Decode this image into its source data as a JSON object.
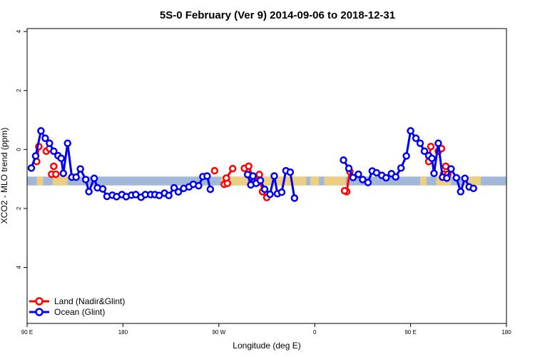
{
  "chart_data": {
    "type": "line",
    "title": "5S-0 February (Ver 9)   2014-09-06 to 2018-12-31",
    "xlabel": "Longitude (deg E)",
    "ylabel": "XCO2 - MLO trend (ppm)",
    "xlim": [
      90,
      540
    ],
    "ylim": [
      -5.9,
      4.1
    ],
    "x_ticks": [
      {
        "value": 90,
        "label": "90 E"
      },
      {
        "value": 180,
        "label": "180"
      },
      {
        "value": 270,
        "label": "90 W"
      },
      {
        "value": 360,
        "label": "0"
      },
      {
        "value": 450,
        "label": "90 E"
      },
      {
        "value": 540,
        "label": "180"
      }
    ],
    "y_ticks": [
      {
        "value": 4,
        "label": "4"
      },
      {
        "value": 2,
        "label": "2"
      },
      {
        "value": 0,
        "label": "0"
      },
      {
        "value": -2,
        "label": "2"
      },
      {
        "value": -4,
        "label": "4"
      }
    ],
    "band": {
      "y_center": -1.07,
      "height": 0.3,
      "color": "#a3b8d8",
      "land_color": "#f5d27a"
    },
    "land_segments": [
      [
        99,
        105
      ],
      [
        114,
        128
      ],
      [
        272,
        297
      ],
      [
        300,
        352
      ],
      [
        356,
        364
      ],
      [
        369,
        389
      ],
      [
        459,
        465
      ],
      [
        474,
        488
      ],
      [
        500,
        516
      ]
    ],
    "series": [
      {
        "name": "Land (Nadir&Glint)",
        "color": "#ff0000",
        "segments": [
          [
            [
              99,
              -0.41
            ],
            [
              101,
              0.1
            ]
          ],
          [
            [
              113,
              -0.84
            ],
            [
              117,
              -0.84
            ]
          ],
          [
            [
              266,
              -0.72
            ]
          ],
          [
            [
              275,
              -1.18
            ],
            [
              277,
              -0.97
            ],
            [
              283,
              -0.65
            ]
          ],
          [
            [
              294,
              -0.64
            ],
            [
              298,
              -0.57
            ],
            [
              303,
              -1.05
            ],
            [
              308,
              -0.85
            ],
            [
              311,
              -1.43
            ],
            [
              315,
              -1.63
            ]
          ],
          [
            [
              390,
              -1.43
            ],
            [
              393,
              -0.75
            ]
          ],
          [
            [
              467,
              -0.41
            ],
            [
              469,
              0.1
            ]
          ],
          [
            [
              481,
              -0.84
            ],
            [
              485,
              -0.84
            ]
          ]
        ],
        "points": [
          [
            108,
            -0.06
          ],
          [
            111,
            0.03
          ],
          [
            115,
            -0.57
          ],
          [
            476,
            -0.06
          ],
          [
            479,
            0.03
          ],
          [
            483,
            -0.57
          ],
          [
            278,
            -1.15
          ],
          [
            307,
            -1.11
          ],
          [
            388,
            -1.4
          ]
        ]
      },
      {
        "name": "Ocean (Glint)",
        "color": "#0000ee",
        "segments": [
          [
            [
              94,
              -0.63
            ],
            [
              98,
              -0.22
            ],
            [
              103,
              0.63
            ],
            [
              107,
              0.38
            ],
            [
              111,
              0.21
            ],
            [
              115,
              -0.06
            ],
            [
              119,
              -0.21
            ],
            [
              122,
              -0.3
            ],
            [
              124,
              -0.81
            ],
            [
              128,
              0.21
            ],
            [
              132,
              -0.94
            ],
            [
              136,
              -0.94
            ],
            [
              140,
              -0.66
            ],
            [
              145,
              -1.02
            ],
            [
              148,
              -1.43
            ],
            [
              153,
              -0.98
            ],
            [
              156,
              -1.3
            ],
            [
              161,
              -1.34
            ],
            [
              165,
              -1.59
            ],
            [
              170,
              -1.55
            ],
            [
              174,
              -1.6
            ],
            [
              179,
              -1.53
            ],
            [
              183,
              -1.6
            ],
            [
              188,
              -1.55
            ],
            [
              192,
              -1.53
            ],
            [
              197,
              -1.62
            ],
            [
              201,
              -1.53
            ],
            [
              206,
              -1.53
            ],
            [
              210,
              -1.53
            ],
            [
              214,
              -1.56
            ],
            [
              219,
              -1.48
            ],
            [
              223,
              -1.56
            ],
            [
              228,
              -1.3
            ],
            [
              232,
              -1.44
            ],
            [
              237,
              -1.32
            ],
            [
              242,
              -1.27
            ],
            [
              246,
              -1.18
            ],
            [
              251,
              -1.23
            ],
            [
              255,
              -0.92
            ],
            [
              259,
              -0.9
            ],
            [
              262,
              -1.35
            ]
          ],
          [
            [
              387,
              -0.36
            ],
            [
              392,
              -0.64
            ],
            [
              396,
              -0.95
            ],
            [
              401,
              -0.84
            ],
            [
              405,
              -1.02
            ],
            [
              410,
              -1.12
            ],
            [
              414,
              -0.73
            ],
            [
              418,
              -0.79
            ],
            [
              423,
              -0.88
            ],
            [
              427,
              -0.96
            ],
            [
              432,
              -0.82
            ],
            [
              436,
              -0.93
            ],
            [
              441,
              -0.63
            ],
            [
              446,
              -0.22
            ],
            [
              450,
              0.63
            ],
            [
              455,
              0.38
            ],
            [
              459,
              0.21
            ],
            [
              463,
              -0.06
            ],
            [
              467,
              -0.21
            ],
            [
              470,
              -0.3
            ],
            [
              472,
              -0.81
            ],
            [
              476,
              0.21
            ],
            [
              480,
              -0.94
            ],
            [
              484,
              -0.97
            ],
            [
              488,
              -0.66
            ],
            [
              493,
              -0.96
            ],
            [
              497,
              -1.43
            ],
            [
              501,
              -0.98
            ],
            [
              505,
              -1.27
            ],
            [
              509,
              -1.32
            ]
          ]
        ],
        "extra_segments": [
          [
            [
              297,
              -0.85
            ],
            [
              300,
              -1.2
            ],
            [
              302,
              -0.9
            ],
            [
              305,
              -1.15
            ],
            [
              309,
              -1.05
            ],
            [
              313,
              -1.35
            ],
            [
              318,
              -1.52
            ],
            [
              322,
              -0.9
            ],
            [
              325,
              -1.5
            ],
            [
              329,
              -1.45
            ],
            [
              333,
              -0.72
            ],
            [
              337,
              -0.77
            ],
            [
              341,
              -1.65
            ]
          ]
        ]
      }
    ],
    "legend": {
      "position": "bottom-left",
      "entries": [
        "Land (Nadir&Glint)",
        "Ocean (Glint)"
      ]
    },
    "grid": false
  }
}
